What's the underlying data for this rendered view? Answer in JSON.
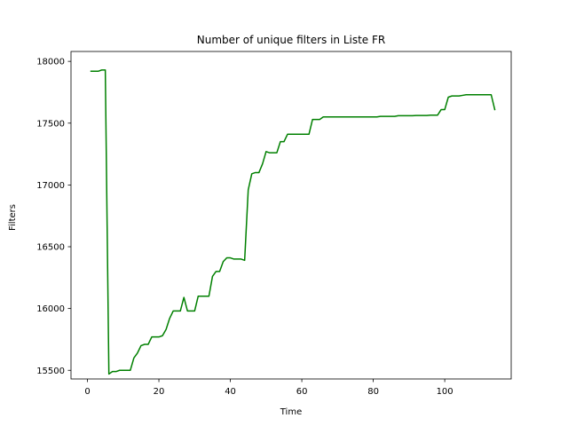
{
  "chart_data": {
    "type": "line",
    "title": "Number of unique filters in Liste FR",
    "xlabel": "Time",
    "ylabel": "Filters",
    "xlim": [
      -4.6,
      118.6
    ],
    "ylim": [
      15430,
      18080
    ],
    "xticks": [
      0,
      20,
      40,
      60,
      80,
      100
    ],
    "yticks": [
      15500,
      16000,
      16500,
      17000,
      17500,
      18000
    ],
    "grid": false,
    "series": [
      {
        "color": "#008000",
        "x": [
          1,
          2,
          3,
          4,
          5,
          6,
          7,
          8,
          9,
          10,
          11,
          12,
          13,
          14,
          15,
          16,
          17,
          18,
          19,
          20,
          21,
          22,
          23,
          24,
          25,
          26,
          27,
          28,
          29,
          30,
          31,
          32,
          33,
          34,
          35,
          36,
          37,
          38,
          39,
          40,
          41,
          42,
          43,
          44,
          45,
          46,
          47,
          48,
          49,
          50,
          51,
          52,
          53,
          54,
          55,
          56,
          57,
          58,
          59,
          60,
          61,
          62,
          63,
          64,
          65,
          66,
          67,
          68,
          69,
          70,
          71,
          72,
          73,
          74,
          75,
          76,
          77,
          78,
          79,
          80,
          81,
          82,
          83,
          84,
          85,
          86,
          87,
          88,
          89,
          90,
          91,
          92,
          93,
          94,
          95,
          96,
          97,
          98,
          99,
          100,
          101,
          102,
          103,
          104,
          105,
          106,
          107,
          108,
          109,
          110,
          111,
          112,
          113,
          114
        ],
        "y": [
          17920,
          17920,
          17920,
          17930,
          17930,
          15470,
          15490,
          15490,
          15500,
          15500,
          15500,
          15500,
          15600,
          15640,
          15700,
          15710,
          15710,
          15770,
          15770,
          15770,
          15780,
          15830,
          15920,
          15980,
          15980,
          15980,
          16090,
          15980,
          15980,
          15980,
          16100,
          16100,
          16100,
          16100,
          16260,
          16300,
          16300,
          16380,
          16410,
          16410,
          16400,
          16400,
          16400,
          16390,
          16960,
          17090,
          17100,
          17100,
          17170,
          17270,
          17260,
          17260,
          17260,
          17350,
          17350,
          17410,
          17410,
          17410,
          17410,
          17410,
          17410,
          17410,
          17530,
          17530,
          17530,
          17550,
          17550,
          17550,
          17550,
          17550,
          17550,
          17550,
          17550,
          17550,
          17550,
          17550,
          17550,
          17550,
          17550,
          17550,
          17550,
          17555,
          17555,
          17555,
          17555,
          17555,
          17560,
          17560,
          17560,
          17560,
          17560,
          17562,
          17562,
          17562,
          17562,
          17565,
          17565,
          17565,
          17610,
          17610,
          17710,
          17720,
          17720,
          17720,
          17725,
          17730,
          17730,
          17730,
          17730,
          17730,
          17730,
          17730,
          17730,
          17610
        ]
      }
    ]
  }
}
